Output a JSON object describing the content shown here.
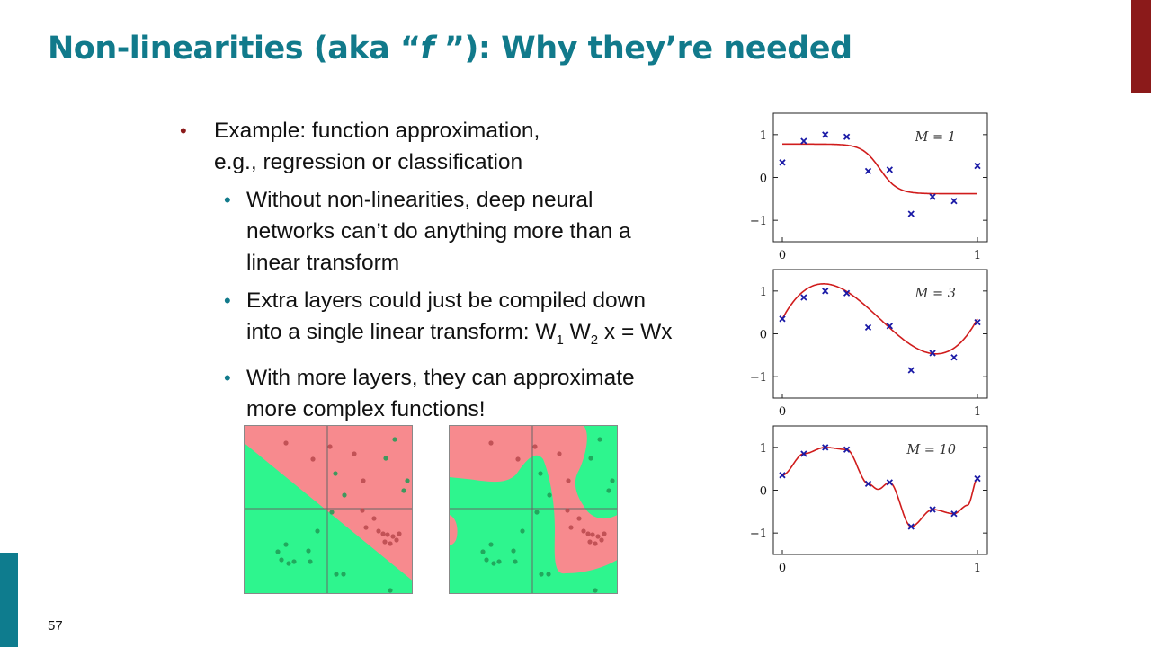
{
  "slide": {
    "title_part1": "Non-linearities (aka “",
    "title_f": "f",
    "title_part2": " ”): Why they’re needed",
    "page_number": "57",
    "accent_color": "#117a8b",
    "bar_color": "#8b1a1a",
    "left_bar_color": "#0e7c8e"
  },
  "bullets": {
    "main_marker": "•",
    "main_color": "#8b1a1a",
    "sub_marker": "•",
    "sub_color": "#117a8b",
    "main_line1": "Example: function approximation,",
    "main_line2": "e.g., regression or classification",
    "sub1_line1": "Without non-linearities, deep neural",
    "sub1_line2": "networks can’t do anything more than a",
    "sub1_line3": "linear transform",
    "sub2_line1": "Extra layers could just be compiled down",
    "sub2_line2_a": "into a single linear transform: W",
    "sub2_sub1": "1",
    "sub2_line2_b": " W",
    "sub2_sub2": "2",
    "sub2_line2_c": " x = Wx",
    "sub3_line1": "With more layers, they can approximate",
    "sub3_line2": "more complex functions!"
  },
  "chart_data": [
    {
      "type": "scatter",
      "title": "",
      "annotation": "M = 1",
      "x_ticks": [
        "0",
        "1"
      ],
      "y_ticks": [
        "1",
        "0",
        "−1"
      ],
      "xlim": [
        0,
        1
      ],
      "ylim": [
        -1.5,
        1.5
      ],
      "points": [
        [
          0,
          0.35
        ],
        [
          0.11,
          0.85
        ],
        [
          0.22,
          1.0
        ],
        [
          0.33,
          0.95
        ],
        [
          0.44,
          0.15
        ],
        [
          0.55,
          0.18
        ],
        [
          0.66,
          -0.85
        ],
        [
          0.77,
          -0.45
        ],
        [
          0.88,
          -0.55
        ],
        [
          1.0,
          0.27
        ]
      ],
      "curve_label": "M = 1 fit",
      "marker_color": "#1a1aa6",
      "curve_color": "#d01c1c"
    },
    {
      "type": "scatter",
      "title": "",
      "annotation": "M = 3",
      "x_ticks": [
        "0",
        "1"
      ],
      "y_ticks": [
        "1",
        "0",
        "−1"
      ],
      "xlim": [
        0,
        1
      ],
      "ylim": [
        -1.5,
        1.5
      ],
      "points": [
        [
          0,
          0.35
        ],
        [
          0.11,
          0.85
        ],
        [
          0.22,
          1.0
        ],
        [
          0.33,
          0.95
        ],
        [
          0.44,
          0.15
        ],
        [
          0.55,
          0.18
        ],
        [
          0.66,
          -0.85
        ],
        [
          0.77,
          -0.45
        ],
        [
          0.88,
          -0.55
        ],
        [
          1.0,
          0.27
        ]
      ],
      "curve_label": "M = 3 fit",
      "marker_color": "#1a1aa6",
      "curve_color": "#d01c1c"
    },
    {
      "type": "scatter",
      "title": "",
      "annotation": "M = 10",
      "x_ticks": [
        "0",
        "1"
      ],
      "y_ticks": [
        "1",
        "0",
        "−1"
      ],
      "xlim": [
        0,
        1
      ],
      "ylim": [
        -1.5,
        1.5
      ],
      "points": [
        [
          0,
          0.35
        ],
        [
          0.11,
          0.85
        ],
        [
          0.22,
          1.0
        ],
        [
          0.33,
          0.95
        ],
        [
          0.44,
          0.15
        ],
        [
          0.55,
          0.18
        ],
        [
          0.66,
          -0.85
        ],
        [
          0.77,
          -0.45
        ],
        [
          0.88,
          -0.55
        ],
        [
          1.0,
          0.27
        ]
      ],
      "curve_label": "M = 10 fit",
      "marker_color": "#1a1aa6",
      "curve_color": "#d01c1c"
    }
  ],
  "decision_plots": {
    "red_region_color": "#f78a8e",
    "green_region_color": "#2ef58e",
    "red_point_color": "#b8484c",
    "green_point_color": "#1f9a55",
    "linear_label": "linear decision boundary",
    "nonlinear_label": "non-linear decision boundary"
  }
}
